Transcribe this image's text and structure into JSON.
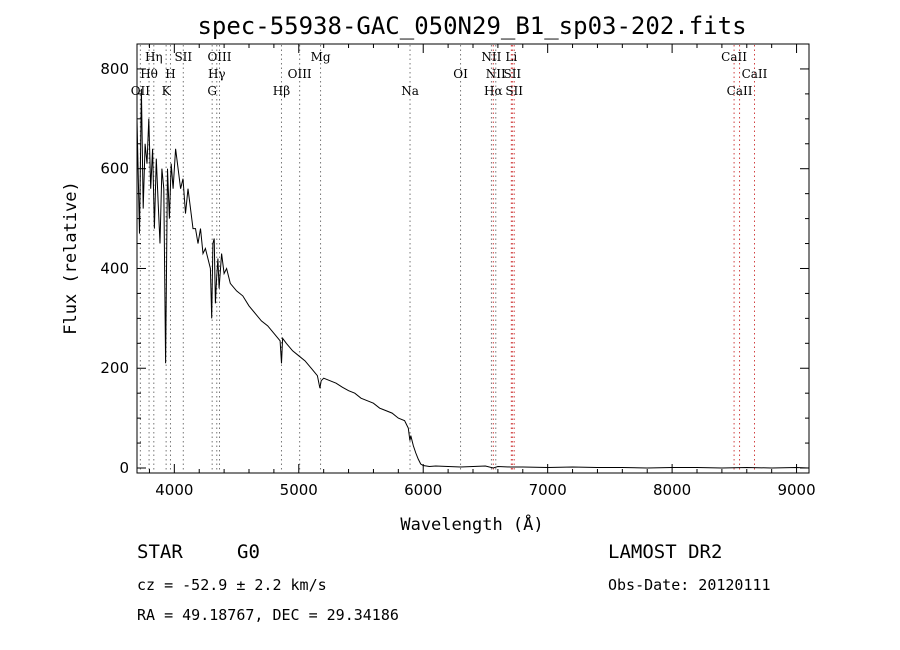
{
  "chart_data": {
    "type": "line",
    "title": "spec-55938-GAC_050N29_B1_sp03-202.fits",
    "xlabel": "Wavelength (Å)",
    "ylabel": "Flux (relative)",
    "xlim": [
      3700,
      9100
    ],
    "ylim": [
      -10,
      850
    ],
    "x_ticks": [
      4000,
      5000,
      6000,
      7000,
      8000,
      9000
    ],
    "x_tick_labels": [
      "4000",
      "5000",
      "6000",
      "7000",
      "8000",
      "9000"
    ],
    "y_ticks": [
      0,
      200,
      400,
      600,
      800
    ],
    "y_tick_labels": [
      "0",
      "200",
      "400",
      "600",
      "800"
    ],
    "grid": false,
    "series": [
      {
        "x": [
          3700,
          3720,
          3735,
          3750,
          3765,
          3780,
          3795,
          3810,
          3825,
          3840,
          3855,
          3870,
          3885,
          3900,
          3915,
          3930,
          3945,
          3960,
          3975,
          3990,
          4010,
          4030,
          4050,
          4070,
          4090,
          4110,
          4130,
          4150,
          4170,
          4190,
          4210,
          4230,
          4250,
          4270,
          4290,
          4300,
          4310,
          4320,
          4330,
          4340,
          4350,
          4360,
          4380,
          4400,
          4420,
          4450,
          4500,
          4550,
          4600,
          4650,
          4700,
          4750,
          4800,
          4850,
          4861,
          4870,
          4900,
          4950,
          5000,
          5050,
          5100,
          5150,
          5170,
          5180,
          5200,
          5250,
          5300,
          5350,
          5400,
          5450,
          5500,
          5550,
          5600,
          5650,
          5700,
          5750,
          5800,
          5850,
          5880,
          5893,
          5900,
          5920,
          5940,
          5960,
          5980,
          6000,
          6050,
          6100,
          6200,
          6300,
          6400,
          6500,
          6563,
          6600,
          6700,
          6800,
          7000,
          7200,
          7400,
          7600,
          7800,
          8000,
          8200,
          8400,
          8600,
          8800,
          9000,
          9100
        ],
        "y": [
          700,
          470,
          760,
          520,
          650,
          610,
          700,
          560,
          640,
          480,
          620,
          530,
          450,
          600,
          560,
          210,
          600,
          500,
          610,
          560,
          640,
          600,
          560,
          580,
          510,
          560,
          520,
          480,
          480,
          450,
          480,
          430,
          440,
          420,
          400,
          300,
          450,
          460,
          330,
          380,
          420,
          360,
          430,
          390,
          400,
          370,
          355,
          345,
          325,
          310,
          295,
          285,
          270,
          255,
          210,
          260,
          250,
          235,
          225,
          215,
          200,
          185,
          160,
          175,
          180,
          175,
          170,
          162,
          155,
          150,
          140,
          135,
          130,
          120,
          115,
          110,
          100,
          95,
          80,
          55,
          65,
          45,
          30,
          18,
          8,
          5,
          3,
          4,
          3,
          2,
          3,
          4,
          0,
          3,
          2,
          2,
          1,
          2,
          1,
          1,
          0,
          1,
          1,
          0,
          1,
          0,
          1,
          0
        ]
      }
    ],
    "emission_lines": [
      {
        "label": "OII",
        "x": 3727,
        "row": 3,
        "color": "#777777"
      },
      {
        "label": "Hθ",
        "x": 3797,
        "row": 2,
        "color": "#777777"
      },
      {
        "label": "Hη",
        "x": 3835,
        "row": 1,
        "color": "#777777"
      },
      {
        "label": "K",
        "x": 3934,
        "row": 3,
        "color": "#777777"
      },
      {
        "label": "H",
        "x": 3969,
        "row": 2,
        "color": "#777777"
      },
      {
        "label": "SII",
        "x": 4072,
        "row": 1,
        "color": "#777777"
      },
      {
        "label": "G",
        "x": 4304,
        "row": 3,
        "color": "#777777"
      },
      {
        "label": "Hγ",
        "x": 4341,
        "row": 2,
        "color": "#777777"
      },
      {
        "label": "OIII",
        "x": 4363,
        "row": 1,
        "color": "#777777"
      },
      {
        "label": "Hβ",
        "x": 4861,
        "row": 3,
        "color": "#777777"
      },
      {
        "label": "OIII",
        "x": 5007,
        "row": 2,
        "color": "#777777"
      },
      {
        "label": "Mg",
        "x": 5175,
        "row": 1,
        "color": "#777777"
      },
      {
        "label": "Na",
        "x": 5894,
        "row": 3,
        "color": "#777777"
      },
      {
        "label": "OI",
        "x": 6300,
        "row": 2,
        "color": "#777777"
      },
      {
        "label": "NII",
        "x": 6548,
        "row": 1,
        "color": "#777777"
      },
      {
        "label": "NII",
        "x": 6583,
        "row": 2,
        "color": "#777777"
      },
      {
        "label": "Hα",
        "x": 6563,
        "row": 3,
        "color": "#d04040"
      },
      {
        "label": "Li",
        "x": 6708,
        "row": 1,
        "color": "#d04040"
      },
      {
        "label": "SII",
        "x": 6716,
        "row": 2,
        "color": "#d04040"
      },
      {
        "label": "SII",
        "x": 6731,
        "row": 3,
        "color": "#d04040"
      },
      {
        "label": "CaII",
        "x": 8498,
        "row": 1,
        "color": "#d04040"
      },
      {
        "label": "CaII",
        "x": 8542,
        "row": 3,
        "color": "#d04040"
      },
      {
        "label": "CaII",
        "x": 8662,
        "row": 2,
        "color": "#d04040"
      }
    ]
  },
  "info": {
    "class": "STAR",
    "subclass": "G0",
    "cz": "cz = -52.9 ± 2.2 km/s",
    "radec": "RA =  49.18767, DEC =  29.34186",
    "survey": "LAMOST DR2",
    "obsdate": "Obs-Date: 20120111"
  }
}
